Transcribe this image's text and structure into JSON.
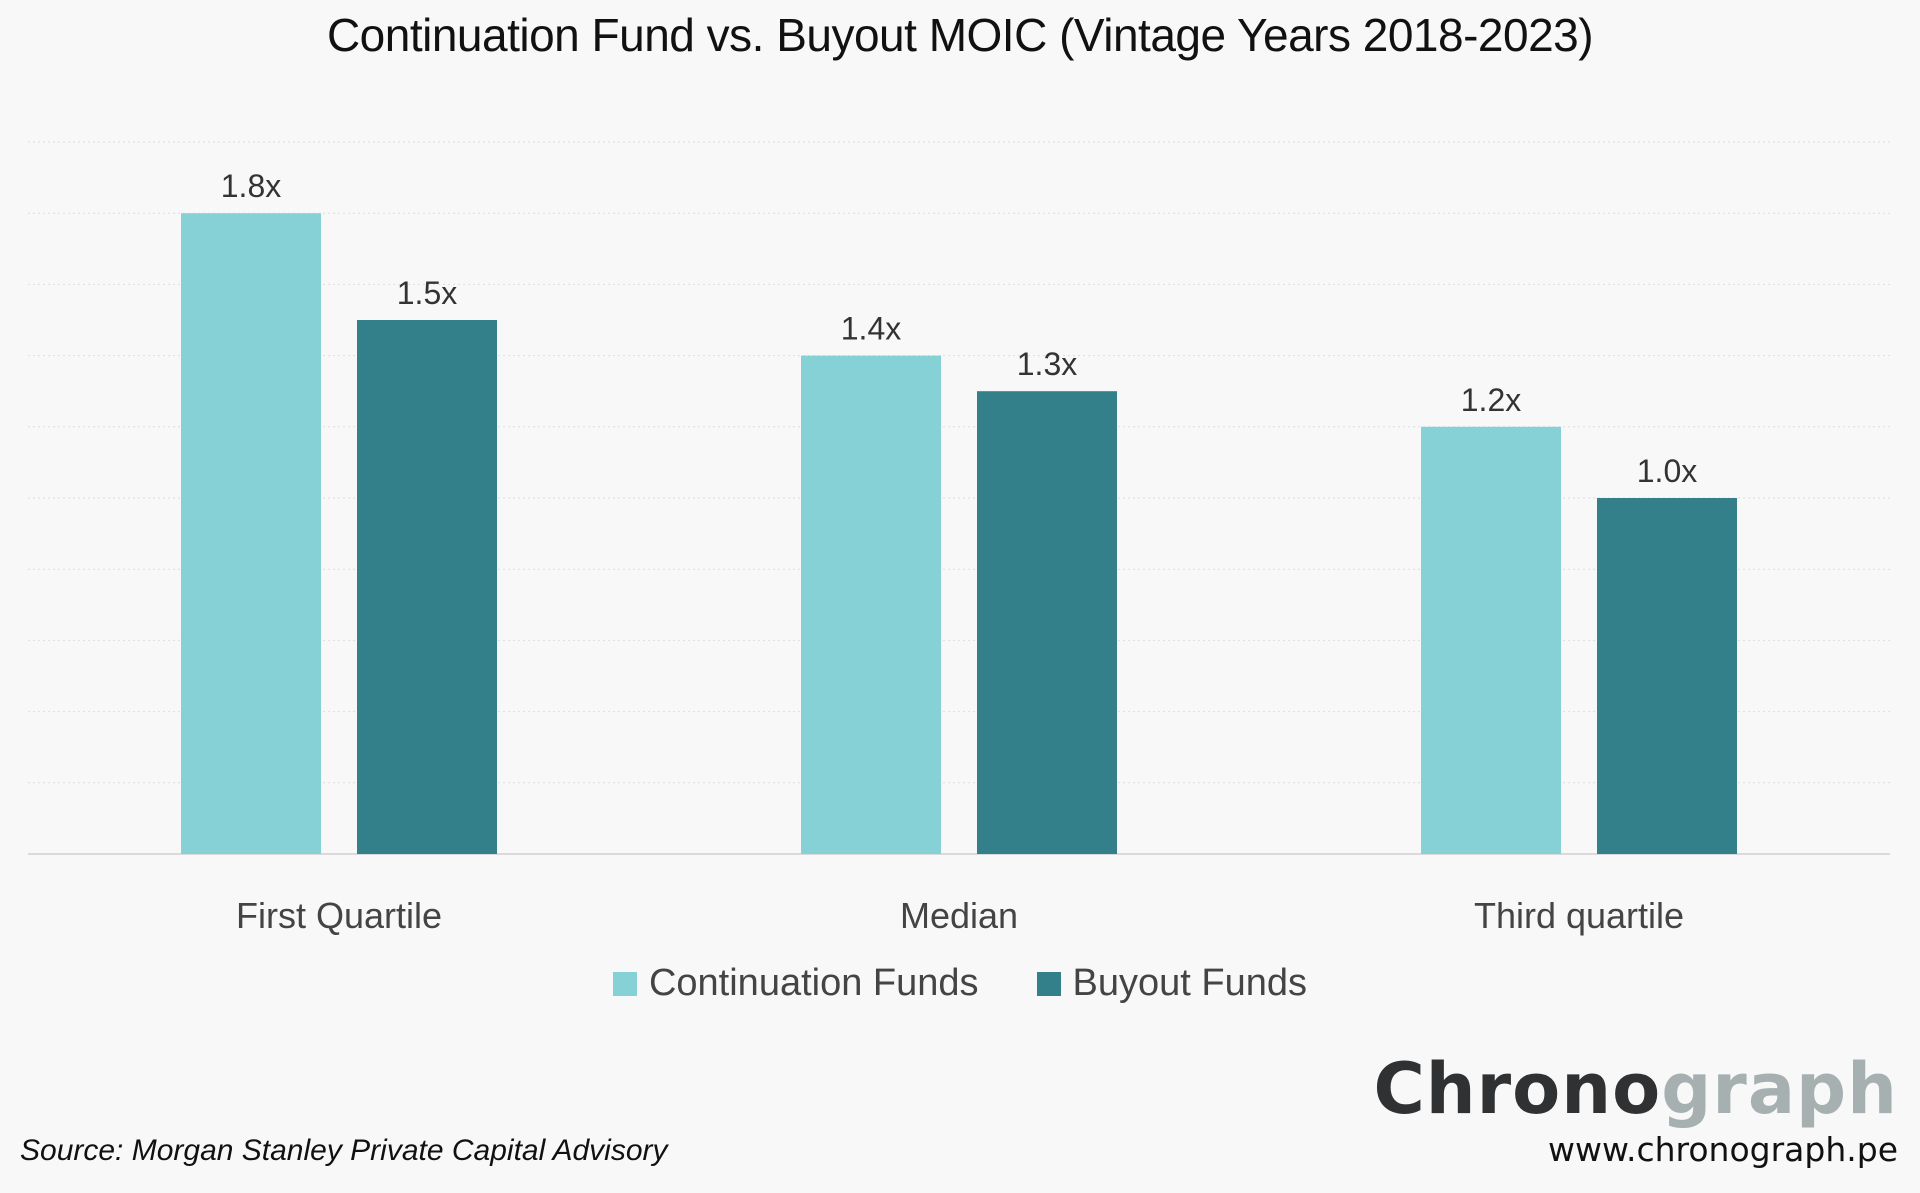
{
  "chart_data": {
    "type": "bar",
    "title": "Continuation Fund vs. Buyout MOIC (Vintage Years 2018-2023)",
    "categories": [
      "First Quartile",
      "Median",
      "Third quartile"
    ],
    "series": [
      {
        "name": "Continuation Funds",
        "values": [
          1.8,
          1.4,
          1.2
        ],
        "labels": [
          "1.8x",
          "1.4x",
          "1.2x"
        ],
        "color": "#86d1d5"
      },
      {
        "name": "Buyout Funds",
        "values": [
          1.5,
          1.3,
          1.0
        ],
        "labels": [
          "1.5x",
          "1.3x",
          "1.0x"
        ],
        "color": "#33808a"
      }
    ],
    "ylim": [
      0,
      2.0
    ],
    "gridline_step": 0.2,
    "grid": true,
    "y_axis_labels_shown": false,
    "legend_position": "bottom-center"
  },
  "footer": {
    "source": "Source: Morgan Stanley Private Capital Advisory",
    "logo_dark": "Chrono",
    "logo_light": "graph",
    "url": "www.chronograph.pe"
  }
}
